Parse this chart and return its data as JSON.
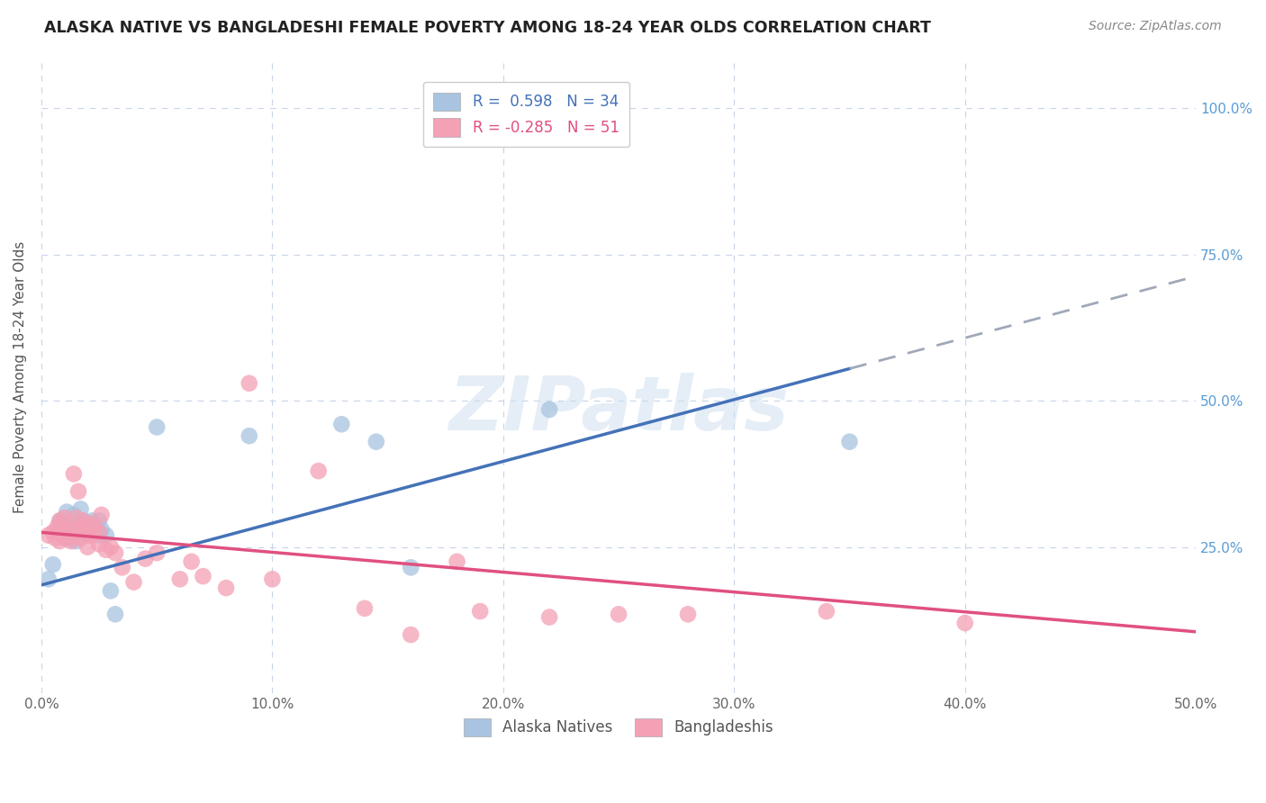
{
  "title": "ALASKA NATIVE VS BANGLADESHI FEMALE POVERTY AMONG 18-24 YEAR OLDS CORRELATION CHART",
  "source": "Source: ZipAtlas.com",
  "ylabel": "Female Poverty Among 18-24 Year Olds",
  "ytick_labels": [
    "100.0%",
    "75.0%",
    "50.0%",
    "25.0%"
  ],
  "ytick_values": [
    1.0,
    0.75,
    0.5,
    0.25
  ],
  "xlim": [
    0.0,
    0.5
  ],
  "ylim": [
    0.0,
    1.08
  ],
  "alaska_R": 0.598,
  "alaska_N": 34,
  "bangladeshi_R": -0.285,
  "bangladeshi_N": 51,
  "alaska_color": "#a8c4e0",
  "bangladeshi_color": "#f4a0b5",
  "alaska_line_color": "#4472b8",
  "bangladeshi_line_color": "#e05080",
  "dashed_line_color": "#a0a8b8",
  "background_color": "#ffffff",
  "grid_color": "#c8d4e8",
  "alaska_points_x": [
    0.003,
    0.005,
    0.007,
    0.008,
    0.009,
    0.01,
    0.011,
    0.012,
    0.013,
    0.014,
    0.015,
    0.015,
    0.016,
    0.017,
    0.018,
    0.018,
    0.019,
    0.02,
    0.021,
    0.022,
    0.023,
    0.025,
    0.025,
    0.026,
    0.028,
    0.03,
    0.032,
    0.05,
    0.09,
    0.13,
    0.145,
    0.16,
    0.22,
    0.35
  ],
  "alaska_points_y": [
    0.195,
    0.22,
    0.275,
    0.295,
    0.285,
    0.265,
    0.31,
    0.29,
    0.265,
    0.305,
    0.285,
    0.26,
    0.29,
    0.315,
    0.275,
    0.295,
    0.28,
    0.275,
    0.29,
    0.295,
    0.285,
    0.27,
    0.295,
    0.28,
    0.27,
    0.175,
    0.135,
    0.455,
    0.44,
    0.46,
    0.43,
    0.215,
    0.485,
    0.43
  ],
  "bangladeshi_points_x": [
    0.003,
    0.005,
    0.006,
    0.007,
    0.008,
    0.008,
    0.009,
    0.01,
    0.01,
    0.011,
    0.012,
    0.013,
    0.014,
    0.015,
    0.015,
    0.016,
    0.016,
    0.017,
    0.018,
    0.019,
    0.02,
    0.02,
    0.021,
    0.022,
    0.023,
    0.025,
    0.025,
    0.026,
    0.028,
    0.03,
    0.032,
    0.035,
    0.04,
    0.045,
    0.05,
    0.06,
    0.065,
    0.07,
    0.08,
    0.09,
    0.1,
    0.12,
    0.14,
    0.16,
    0.18,
    0.19,
    0.22,
    0.25,
    0.28,
    0.34,
    0.4
  ],
  "bangladeshi_points_y": [
    0.27,
    0.275,
    0.265,
    0.285,
    0.26,
    0.295,
    0.27,
    0.275,
    0.3,
    0.265,
    0.28,
    0.26,
    0.375,
    0.28,
    0.3,
    0.275,
    0.345,
    0.265,
    0.295,
    0.285,
    0.25,
    0.27,
    0.29,
    0.27,
    0.285,
    0.255,
    0.275,
    0.305,
    0.245,
    0.25,
    0.24,
    0.215,
    0.19,
    0.23,
    0.24,
    0.195,
    0.225,
    0.2,
    0.18,
    0.53,
    0.195,
    0.38,
    0.145,
    0.1,
    0.225,
    0.14,
    0.13,
    0.135,
    0.135,
    0.14,
    0.12
  ],
  "alaska_line_x": [
    0.0,
    0.35
  ],
  "alaska_line_y": [
    0.185,
    0.555
  ],
  "bangladeshi_line_x": [
    0.0,
    0.5
  ],
  "bangladeshi_line_y": [
    0.275,
    0.105
  ],
  "dashed_line_x": [
    0.35,
    0.5
  ],
  "dashed_line_y": [
    0.555,
    0.713
  ],
  "watermark_text": "ZIPatlas",
  "legend_alaska_label": "R =  0.598   N = 34",
  "legend_bangladeshi_label": "R = -0.285   N = 51",
  "bottom_legend_alaska": "Alaska Natives",
  "bottom_legend_bangladeshi": "Bangladeshis"
}
